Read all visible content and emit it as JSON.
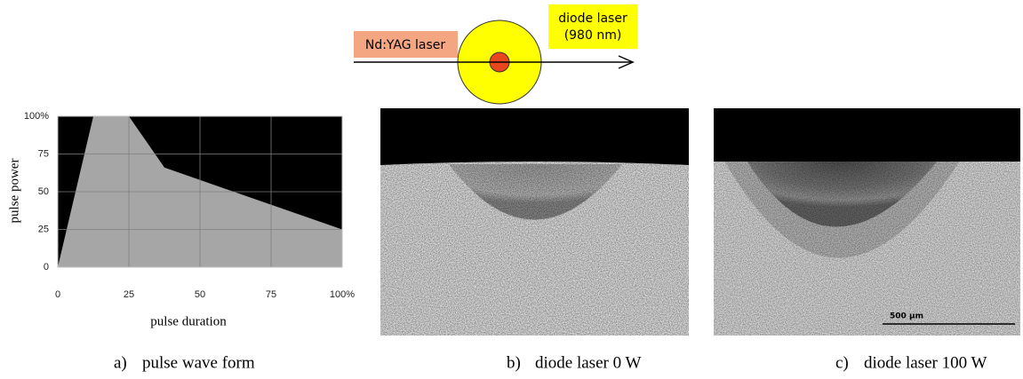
{
  "diagram": {
    "nd_yag_label": "Nd:YAG laser",
    "diode_label": [
      "diode laser",
      "(980 nm)"
    ]
  },
  "chart_data": {
    "type": "area",
    "x_label": "pulse duration",
    "y_label": "pulse power",
    "x": [
      0,
      12.5,
      25,
      37.5,
      100
    ],
    "values": [
      0,
      100,
      100,
      66,
      25
    ],
    "color": "#a6a6a6",
    "background": "#000000",
    "xlim": [
      0,
      100
    ],
    "ylim": [
      0,
      100
    ],
    "xticks": [
      0,
      25,
      50,
      75,
      {
        "value": 100,
        "label": "100%"
      }
    ],
    "yticks": [
      0,
      25,
      50,
      75,
      {
        "value": 100,
        "label": "100%"
      }
    ],
    "grid": true
  },
  "scale_bar": "500 µm",
  "captions": [
    {
      "letter": "a)",
      "text": "pulse wave form"
    },
    {
      "letter": "b)",
      "text": "diode laser 0 W"
    },
    {
      "letter": "c)",
      "text": "diode laser 100 W"
    }
  ]
}
